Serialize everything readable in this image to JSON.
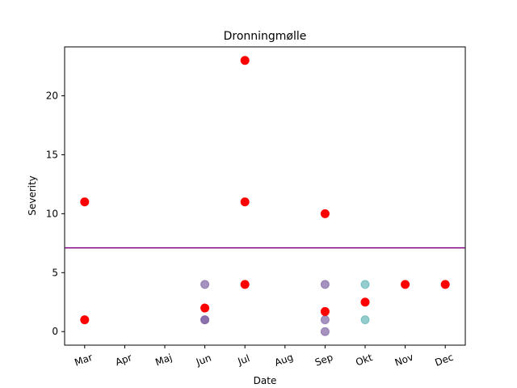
{
  "chart_data": {
    "type": "scatter",
    "title": "Dronningmølle",
    "xlabel": "Date",
    "ylabel": "Severity",
    "x_categories": [
      "Mar",
      "Apr",
      "Maj",
      "Jun",
      "Jul",
      "Aug",
      "Sep",
      "Okt",
      "Nov",
      "Dec"
    ],
    "xlim": [
      -0.5,
      9.5
    ],
    "ylim": [
      -1.15,
      24.15
    ],
    "yticks": [
      0,
      5,
      10,
      15,
      20
    ],
    "grid": false,
    "reference_line": {
      "y": 7.1,
      "color": "#800080"
    },
    "series": [
      {
        "color": "#8064A2",
        "opacity": 0.7,
        "points": [
          {
            "x": "Jun",
            "y": 4
          },
          {
            "x": "Jun",
            "y": 1
          },
          {
            "x": "Jun",
            "y": 1
          },
          {
            "x": "Sep",
            "y": 4
          },
          {
            "x": "Sep",
            "y": 1
          },
          {
            "x": "Sep",
            "y": 0
          }
        ]
      },
      {
        "color": "#4BACAC",
        "opacity": 0.6,
        "points": [
          {
            "x": "Okt",
            "y": 4
          },
          {
            "x": "Okt",
            "y": 1
          }
        ]
      },
      {
        "color": "#FF0000",
        "opacity": 1,
        "points": [
          {
            "x": "Mar",
            "y": 11
          },
          {
            "x": "Mar",
            "y": 1
          },
          {
            "x": "Jun",
            "y": 2
          },
          {
            "x": "Jul",
            "y": 23
          },
          {
            "x": "Jul",
            "y": 11
          },
          {
            "x": "Jul",
            "y": 4
          },
          {
            "x": "Sep",
            "y": 10
          },
          {
            "x": "Sep",
            "y": 1.7
          },
          {
            "x": "Okt",
            "y": 2.5
          },
          {
            "x": "Nov",
            "y": 4
          },
          {
            "x": "Dec",
            "y": 4
          }
        ]
      }
    ]
  }
}
